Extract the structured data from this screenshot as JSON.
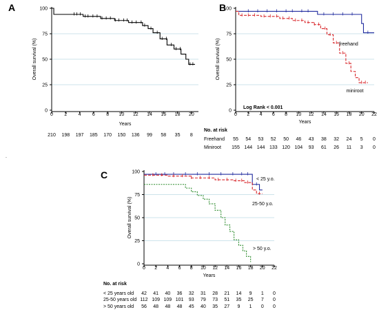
{
  "chart_data": [
    {
      "panel_label": "A",
      "type": "line",
      "ylabel": "Overall survival (%)",
      "xlabel": "Years",
      "xlim": [
        0,
        21
      ],
      "ylim": [
        0,
        100
      ],
      "x_ticks": [
        0,
        2,
        4,
        6,
        8,
        10,
        12,
        14,
        16,
        18,
        20
      ],
      "y_ticks": [
        0,
        25,
        50,
        75,
        100
      ],
      "grid_lines": [
        25,
        50,
        75
      ],
      "series": [
        {
          "name": "",
          "color": "#000000",
          "dash": "",
          "points": [
            [
              0,
              100
            ],
            [
              0.3,
              94
            ],
            [
              3,
              94
            ],
            [
              4.5,
              92
            ],
            [
              7,
              90
            ],
            [
              9,
              88
            ],
            [
              11,
              86
            ],
            [
              13,
              83
            ],
            [
              13.8,
              80
            ],
            [
              14.5,
              76
            ],
            [
              15.5,
              70
            ],
            [
              16.5,
              64
            ],
            [
              17.5,
              60
            ],
            [
              18.5,
              55
            ],
            [
              19.2,
              50
            ],
            [
              19.6,
              45
            ],
            [
              20.5,
              45
            ]
          ],
          "censor_x": [
            3.2,
            3.6,
            4.1,
            4.8,
            5.2,
            5.9,
            6.5,
            7.2,
            7.8,
            8.4,
            9.1,
            9.6,
            10.3,
            10.8,
            11.5,
            12.1,
            12.8,
            13.3,
            14.2,
            15.1,
            15.8,
            16.4,
            17.1,
            17.8,
            18.4,
            19.8,
            20.2
          ]
        }
      ],
      "risk_table": {
        "rows": [
          {
            "label": "",
            "values": [
              "210",
              "198",
              "197",
              "185",
              "170",
              "150",
              "136",
              "99",
              "58",
              "35",
              "8"
            ]
          }
        ]
      }
    },
    {
      "panel_label": "B",
      "type": "line",
      "ylabel": "Overall survival (%)",
      "xlabel": "Years",
      "xlim": [
        0,
        22
      ],
      "ylim": [
        0,
        100
      ],
      "x_ticks": [
        0,
        2,
        4,
        6,
        8,
        10,
        12,
        14,
        16,
        18,
        20,
        22
      ],
      "y_ticks": [
        0,
        25,
        50,
        75,
        100
      ],
      "grid_lines": [
        25,
        50,
        75
      ],
      "annotations": [
        "freehand",
        "miniroot",
        "Log Rank < 0.001"
      ],
      "series": [
        {
          "name": "freehand",
          "color": "#1f2a9e",
          "dash": "",
          "points": [
            [
              0,
              97
            ],
            [
              12,
              97
            ],
            [
              13,
              94
            ],
            [
              19.5,
              94
            ],
            [
              20,
              85
            ],
            [
              20.3,
              76
            ],
            [
              22,
              76
            ]
          ],
          "censor_x": [
            2,
            3.5,
            5,
            6.5,
            8,
            9,
            10.5,
            11.5,
            14,
            15.5,
            17,
            18.5,
            21
          ]
        },
        {
          "name": "miniroot",
          "color": "#d8262a",
          "dash": "4,2",
          "points": [
            [
              0,
              97
            ],
            [
              0.5,
              93
            ],
            [
              4,
              92
            ],
            [
              7,
              90
            ],
            [
              9,
              88
            ],
            [
              11,
              86
            ],
            [
              12.5,
              84
            ],
            [
              13.5,
              80
            ],
            [
              14.5,
              74
            ],
            [
              15.5,
              66
            ],
            [
              16.5,
              56
            ],
            [
              17.5,
              46
            ],
            [
              18.3,
              38
            ],
            [
              19,
              32
            ],
            [
              19.6,
              27
            ],
            [
              21,
              27
            ]
          ],
          "censor_x": [
            1,
            2,
            3,
            4.5,
            5.5,
            6.5,
            7.5,
            8.5,
            9.5,
            10.5,
            11.5,
            12.5,
            13.2,
            14.2,
            15,
            16,
            17,
            18,
            20,
            20.6
          ]
        }
      ],
      "risk_table": {
        "title": "No. at risk",
        "rows": [
          {
            "label": "Freehand",
            "values": [
              "55",
              "54",
              "53",
              "52",
              "50",
              "46",
              "43",
              "38",
              "32",
              "24",
              "5",
              "0"
            ]
          },
          {
            "label": "Miniroot",
            "values": [
              "155",
              "144",
              "144",
              "133",
              "120",
              "104",
              "93",
              "61",
              "26",
              "11",
              "3",
              "0"
            ]
          }
        ]
      }
    },
    {
      "panel_label": "C",
      "type": "line",
      "ylabel": "Overall survival (%)",
      "xlabel": "Years",
      "xlim": [
        0,
        22
      ],
      "ylim": [
        0,
        100
      ],
      "x_ticks": [
        0,
        2,
        4,
        6,
        8,
        10,
        12,
        14,
        16,
        18,
        20,
        22
      ],
      "y_ticks": [
        0,
        25,
        50,
        75,
        100
      ],
      "grid_lines": [
        25,
        50,
        75
      ],
      "annotations": [
        "< 25 y.o.",
        "25-50 y.o.",
        "> 50 y.o."
      ],
      "series": [
        {
          "name": "< 25 y.o.",
          "color": "#1f2a9e",
          "dash": "",
          "points": [
            [
              0,
              97
            ],
            [
              18,
              97
            ],
            [
              18.3,
              86
            ],
            [
              19.5,
              80
            ],
            [
              20,
              80
            ]
          ],
          "censor_x": [
            2,
            3.5,
            5,
            7,
            9,
            11,
            13,
            15,
            16.5,
            17.5,
            19
          ]
        },
        {
          "name": "25-50 y.o.",
          "color": "#d8262a",
          "dash": "4,2",
          "points": [
            [
              0,
              96
            ],
            [
              4,
              95
            ],
            [
              8,
              93
            ],
            [
              12,
              91
            ],
            [
              15,
              90
            ],
            [
              17,
              88
            ],
            [
              18.3,
              80
            ],
            [
              19,
              76
            ],
            [
              20,
              76
            ]
          ],
          "censor_x": [
            1.5,
            3,
            5,
            6.5,
            8,
            9.5,
            11,
            12.5,
            14,
            15.5,
            16.5,
            17.5,
            19.5
          ]
        },
        {
          "name": "> 50 y.o.",
          "color": "#2a8a2a",
          "dash": "2,1.5",
          "points": [
            [
              0,
              86
            ],
            [
              6,
              86
            ],
            [
              7,
              82
            ],
            [
              8,
              78
            ],
            [
              9,
              74
            ],
            [
              10,
              70
            ],
            [
              11,
              65
            ],
            [
              12,
              58
            ],
            [
              13,
              50
            ],
            [
              13.7,
              42
            ],
            [
              14.5,
              35
            ],
            [
              15.2,
              26
            ],
            [
              16,
              20
            ],
            [
              16.7,
              14
            ],
            [
              17.3,
              8
            ],
            [
              18,
              2
            ]
          ],
          "censor_x": []
        }
      ],
      "risk_table": {
        "title": "No. at risk",
        "rows": [
          {
            "label": "< 25 years old",
            "values": [
              "42",
              "41",
              "40",
              "36",
              "32",
              "31",
              "28",
              "21",
              "14",
              "9",
              "1",
              "0"
            ]
          },
          {
            "label": "25-50 years old",
            "values": [
              "112",
              "109",
              "109",
              "101",
              "93",
              "79",
              "73",
              "51",
              "35",
              "25",
              "7",
              "0"
            ]
          },
          {
            "label": "> 50 years old",
            "values": [
              "56",
              "48",
              "48",
              "48",
              "45",
              "40",
              "35",
              "27",
              "9",
              "1",
              "0",
              "0"
            ]
          }
        ]
      }
    }
  ]
}
